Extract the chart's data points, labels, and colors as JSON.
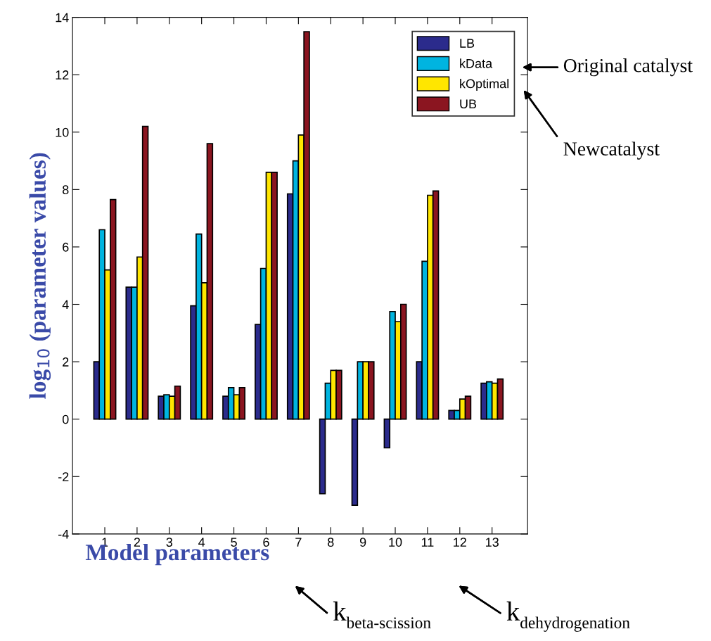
{
  "chart_data": {
    "type": "bar",
    "ylabel": "log$_{10}$ (parameter values)",
    "xlabel": "Model parameters",
    "categories": [
      "1",
      "2",
      "3",
      "4",
      "5",
      "6",
      "7",
      "8",
      "9",
      "10",
      "11",
      "12",
      "13"
    ],
    "series": [
      {
        "name": "LB",
        "color": "#2b2b8c",
        "values": [
          2.0,
          4.6,
          0.8,
          3.95,
          0.8,
          3.3,
          7.85,
          -2.6,
          -3.0,
          -1.0,
          2.0,
          0.3,
          1.25
        ]
      },
      {
        "name": "kData",
        "color": "#00b4e0",
        "values": [
          6.6,
          4.6,
          0.85,
          6.45,
          1.1,
          5.25,
          9.0,
          1.25,
          2.0,
          3.75,
          5.5,
          0.3,
          1.3
        ]
      },
      {
        "name": "kOptimal",
        "color": "#ffe600",
        "values": [
          5.2,
          5.65,
          0.8,
          4.75,
          0.85,
          8.6,
          9.9,
          1.7,
          2.0,
          3.4,
          7.8,
          0.7,
          1.25
        ]
      },
      {
        "name": "UB",
        "color": "#8b1520",
        "values": [
          7.65,
          10.2,
          1.15,
          9.6,
          1.1,
          8.6,
          13.5,
          1.7,
          2.0,
          4.0,
          7.95,
          0.8,
          1.4
        ]
      }
    ],
    "ylim": [
      -4,
      14
    ],
    "yticks": [
      -4,
      -2,
      0,
      2,
      4,
      6,
      8,
      10,
      12,
      14
    ],
    "grid": false,
    "legend": "top right",
    "annotations": [
      "Original catalyst",
      "Newcatalyst",
      "k$_{beta-scission}$",
      "k$_{dehydrogenation}$"
    ]
  }
}
